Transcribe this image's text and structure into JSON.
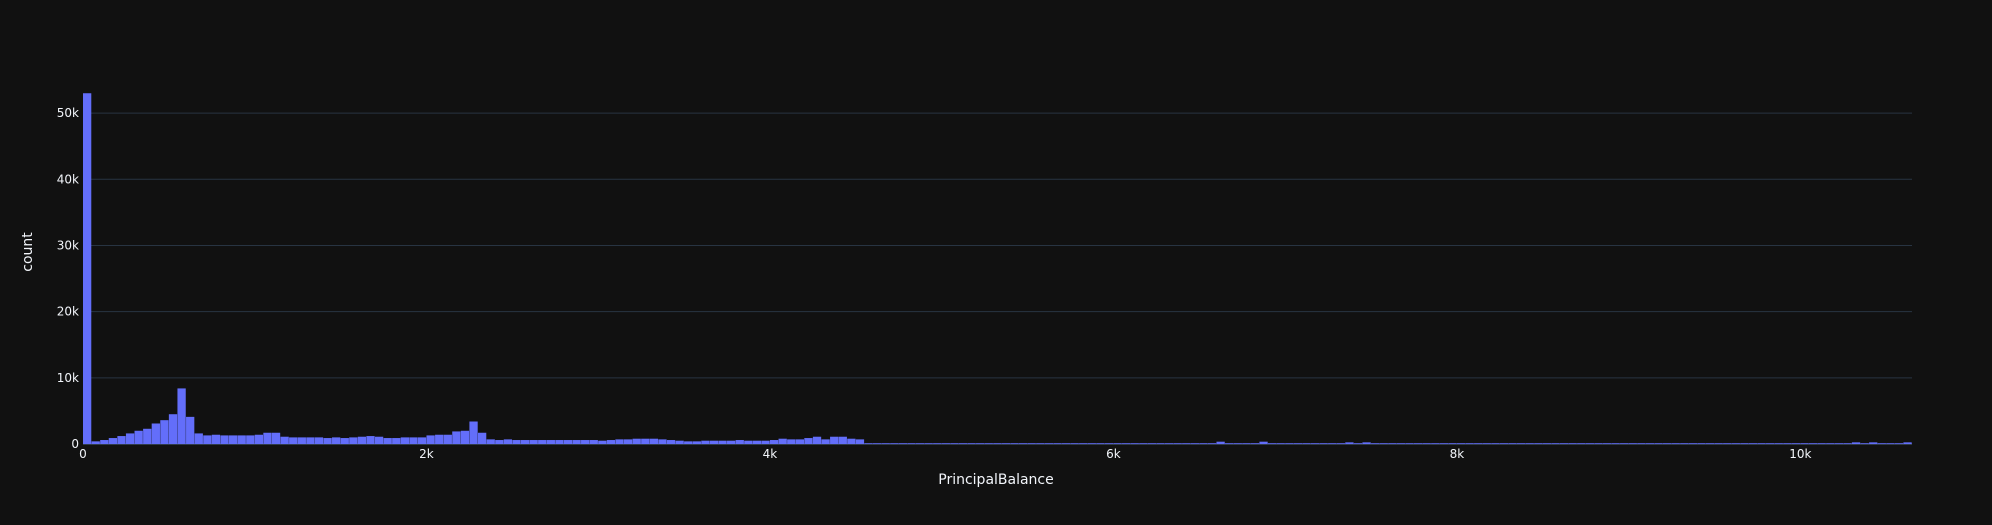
{
  "chart_data": {
    "type": "bar",
    "title": "",
    "xlabel": "PrincipalBalance",
    "ylabel": "count",
    "xlim": [
      0,
      10650
    ],
    "ylim": [
      0,
      55000
    ],
    "grid": true,
    "bar_color": "#636efa",
    "background": "#111111",
    "x_ticks": [
      {
        "value": 0,
        "label": "0"
      },
      {
        "value": 2000,
        "label": "2k"
      },
      {
        "value": 4000,
        "label": "4k"
      },
      {
        "value": 6000,
        "label": "6k"
      },
      {
        "value": 8000,
        "label": "8k"
      },
      {
        "value": 10000,
        "label": "10k"
      }
    ],
    "y_ticks": [
      {
        "value": 0,
        "label": "0"
      },
      {
        "value": 10000,
        "label": "10k"
      },
      {
        "value": 20000,
        "label": "20k"
      },
      {
        "value": 30000,
        "label": "30k"
      },
      {
        "value": 40000,
        "label": "40k"
      },
      {
        "value": 50000,
        "label": "50k"
      }
    ],
    "bin_width": 50,
    "bins": [
      {
        "x": 0,
        "count": 53000
      },
      {
        "x": 50,
        "count": 400
      },
      {
        "x": 100,
        "count": 600
      },
      {
        "x": 150,
        "count": 900
      },
      {
        "x": 200,
        "count": 1200
      },
      {
        "x": 250,
        "count": 1600
      },
      {
        "x": 300,
        "count": 2000
      },
      {
        "x": 350,
        "count": 2300
      },
      {
        "x": 400,
        "count": 3100
      },
      {
        "x": 450,
        "count": 3600
      },
      {
        "x": 500,
        "count": 4500
      },
      {
        "x": 500,
        "count": 0
      },
      {
        "x": 550,
        "count": 0
      },
      {
        "x": 500,
        "count": 0
      }
    ]
  }
}
